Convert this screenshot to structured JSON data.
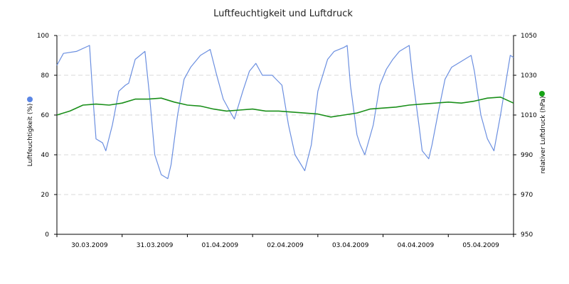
{
  "chart_data": {
    "type": "line",
    "title": "Luftfeuchtigkeit und Luftdruck",
    "grid": "horizontal dashed",
    "x_tick_labels": [
      "30.03.2009",
      "31.03.2009",
      "01.04.2009",
      "02.04.2009",
      "03.04.2009",
      "04.04.2009",
      "05.04.2009"
    ],
    "x_range_days": [
      0,
      7
    ],
    "y_left": {
      "label": "Luftfeuchtigkeit (%)",
      "range": [
        0,
        100
      ],
      "ticks": [
        "0",
        "20",
        "40",
        "60",
        "80",
        "100"
      ]
    },
    "y_right": {
      "label": "relativer Luftdruck (hPa)",
      "range": [
        950,
        1050
      ],
      "ticks": [
        "950",
        "970",
        "990",
        "1010",
        "1030",
        "1050"
      ]
    },
    "series": [
      {
        "axis": "left",
        "color": "#6b8fe0",
        "legend_marker_color": "#5b86e5",
        "points": [
          [
            0,
            85
          ],
          [
            0.1,
            91
          ],
          [
            0.3,
            92
          ],
          [
            0.5,
            95
          ],
          [
            0.55,
            70
          ],
          [
            0.6,
            48
          ],
          [
            0.7,
            46
          ],
          [
            0.75,
            42
          ],
          [
            0.85,
            55
          ],
          [
            0.95,
            72
          ],
          [
            1.05,
            75
          ],
          [
            1.1,
            76
          ],
          [
            1.2,
            88
          ],
          [
            1.35,
            92
          ],
          [
            1.42,
            70
          ],
          [
            1.5,
            40
          ],
          [
            1.6,
            30
          ],
          [
            1.7,
            28
          ],
          [
            1.75,
            35
          ],
          [
            1.85,
            60
          ],
          [
            1.95,
            78
          ],
          [
            2.05,
            84
          ],
          [
            2.2,
            90
          ],
          [
            2.35,
            93
          ],
          [
            2.45,
            80
          ],
          [
            2.55,
            68
          ],
          [
            2.65,
            62
          ],
          [
            2.72,
            58
          ],
          [
            2.85,
            72
          ],
          [
            2.95,
            82
          ],
          [
            3.05,
            86
          ],
          [
            3.15,
            80
          ],
          [
            3.3,
            80
          ],
          [
            3.45,
            75
          ],
          [
            3.55,
            55
          ],
          [
            3.65,
            40
          ],
          [
            3.8,
            32
          ],
          [
            3.9,
            45
          ],
          [
            4.0,
            72
          ],
          [
            4.15,
            88
          ],
          [
            4.25,
            92
          ],
          [
            4.4,
            94
          ],
          [
            4.45,
            95
          ],
          [
            4.5,
            75
          ],
          [
            4.6,
            50
          ],
          [
            4.65,
            45
          ],
          [
            4.72,
            40
          ],
          [
            4.85,
            55
          ],
          [
            4.95,
            75
          ],
          [
            5.05,
            83
          ],
          [
            5.15,
            88
          ],
          [
            5.25,
            92
          ],
          [
            5.4,
            95
          ],
          [
            5.45,
            80
          ],
          [
            5.55,
            55
          ],
          [
            5.6,
            42
          ],
          [
            5.7,
            38
          ],
          [
            5.75,
            45
          ],
          [
            5.85,
            62
          ],
          [
            5.95,
            78
          ],
          [
            6.05,
            84
          ],
          [
            6.15,
            86
          ],
          [
            6.35,
            90
          ],
          [
            6.4,
            82
          ],
          [
            6.5,
            60
          ],
          [
            6.6,
            48
          ],
          [
            6.65,
            45
          ],
          [
            6.7,
            42
          ],
          [
            6.8,
            60
          ],
          [
            6.9,
            80
          ],
          [
            6.95,
            90
          ],
          [
            7.0,
            89
          ]
        ]
      },
      {
        "axis": "right",
        "color": "#1a8f1a",
        "legend_marker_color": "#17a317",
        "points": [
          [
            0,
            1010
          ],
          [
            0.2,
            1012
          ],
          [
            0.4,
            1015
          ],
          [
            0.6,
            1015.5
          ],
          [
            0.8,
            1015
          ],
          [
            1.0,
            1016
          ],
          [
            1.2,
            1018
          ],
          [
            1.4,
            1018
          ],
          [
            1.6,
            1018.5
          ],
          [
            1.8,
            1016.5
          ],
          [
            2.0,
            1015
          ],
          [
            2.2,
            1014.5
          ],
          [
            2.4,
            1013
          ],
          [
            2.6,
            1012
          ],
          [
            2.8,
            1012.5
          ],
          [
            3.0,
            1013
          ],
          [
            3.2,
            1012
          ],
          [
            3.4,
            1012
          ],
          [
            3.6,
            1011.5
          ],
          [
            3.8,
            1011
          ],
          [
            4.0,
            1010.5
          ],
          [
            4.2,
            1009
          ],
          [
            4.4,
            1010
          ],
          [
            4.6,
            1011
          ],
          [
            4.8,
            1013
          ],
          [
            5.0,
            1013.5
          ],
          [
            5.2,
            1014
          ],
          [
            5.4,
            1015
          ],
          [
            5.6,
            1015.5
          ],
          [
            5.8,
            1016
          ],
          [
            6.0,
            1016.5
          ],
          [
            6.2,
            1016
          ],
          [
            6.4,
            1017
          ],
          [
            6.6,
            1018.5
          ],
          [
            6.8,
            1019
          ],
          [
            7.0,
            1016
          ]
        ]
      }
    ]
  }
}
